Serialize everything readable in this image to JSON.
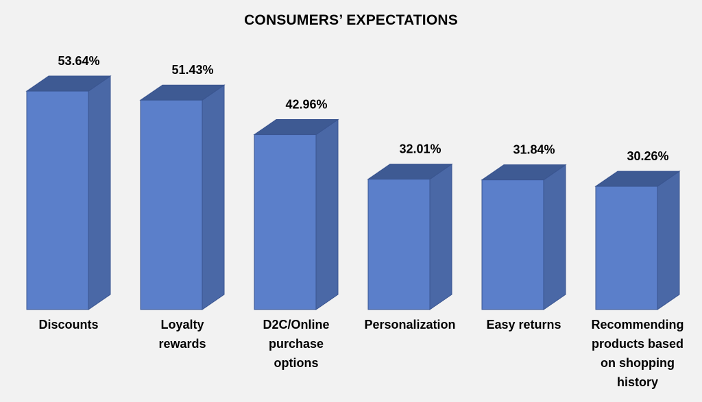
{
  "chart_data": {
    "type": "bar",
    "title": "CONSUMERS’ EXPECTATIONS",
    "categories": [
      "Discounts",
      "Loyalty rewards",
      "D2C/Online purchase options",
      "Personalization",
      "Easy returns",
      "Recommending products based on shopping history"
    ],
    "category_lines": [
      [
        "Discounts"
      ],
      [
        "Loyalty",
        "rewards"
      ],
      [
        "D2C/Online",
        "purchase",
        "options"
      ],
      [
        "Personalization"
      ],
      [
        "Easy returns"
      ],
      [
        "Recommending",
        "products based",
        "on shopping",
        "history"
      ]
    ],
    "values": [
      53.64,
      51.43,
      42.96,
      32.01,
      31.84,
      30.26
    ],
    "value_labels": [
      "53.64%",
      "51.43%",
      "42.96%",
      "32.01%",
      "31.84%",
      "30.26%"
    ],
    "ylim": [
      0,
      60
    ],
    "grid": false,
    "style": "3d-bar",
    "colors": {
      "front": "#5b7fca",
      "side": "#4a68a6",
      "top": "#3e5a93",
      "edge": "#3a5590"
    }
  }
}
